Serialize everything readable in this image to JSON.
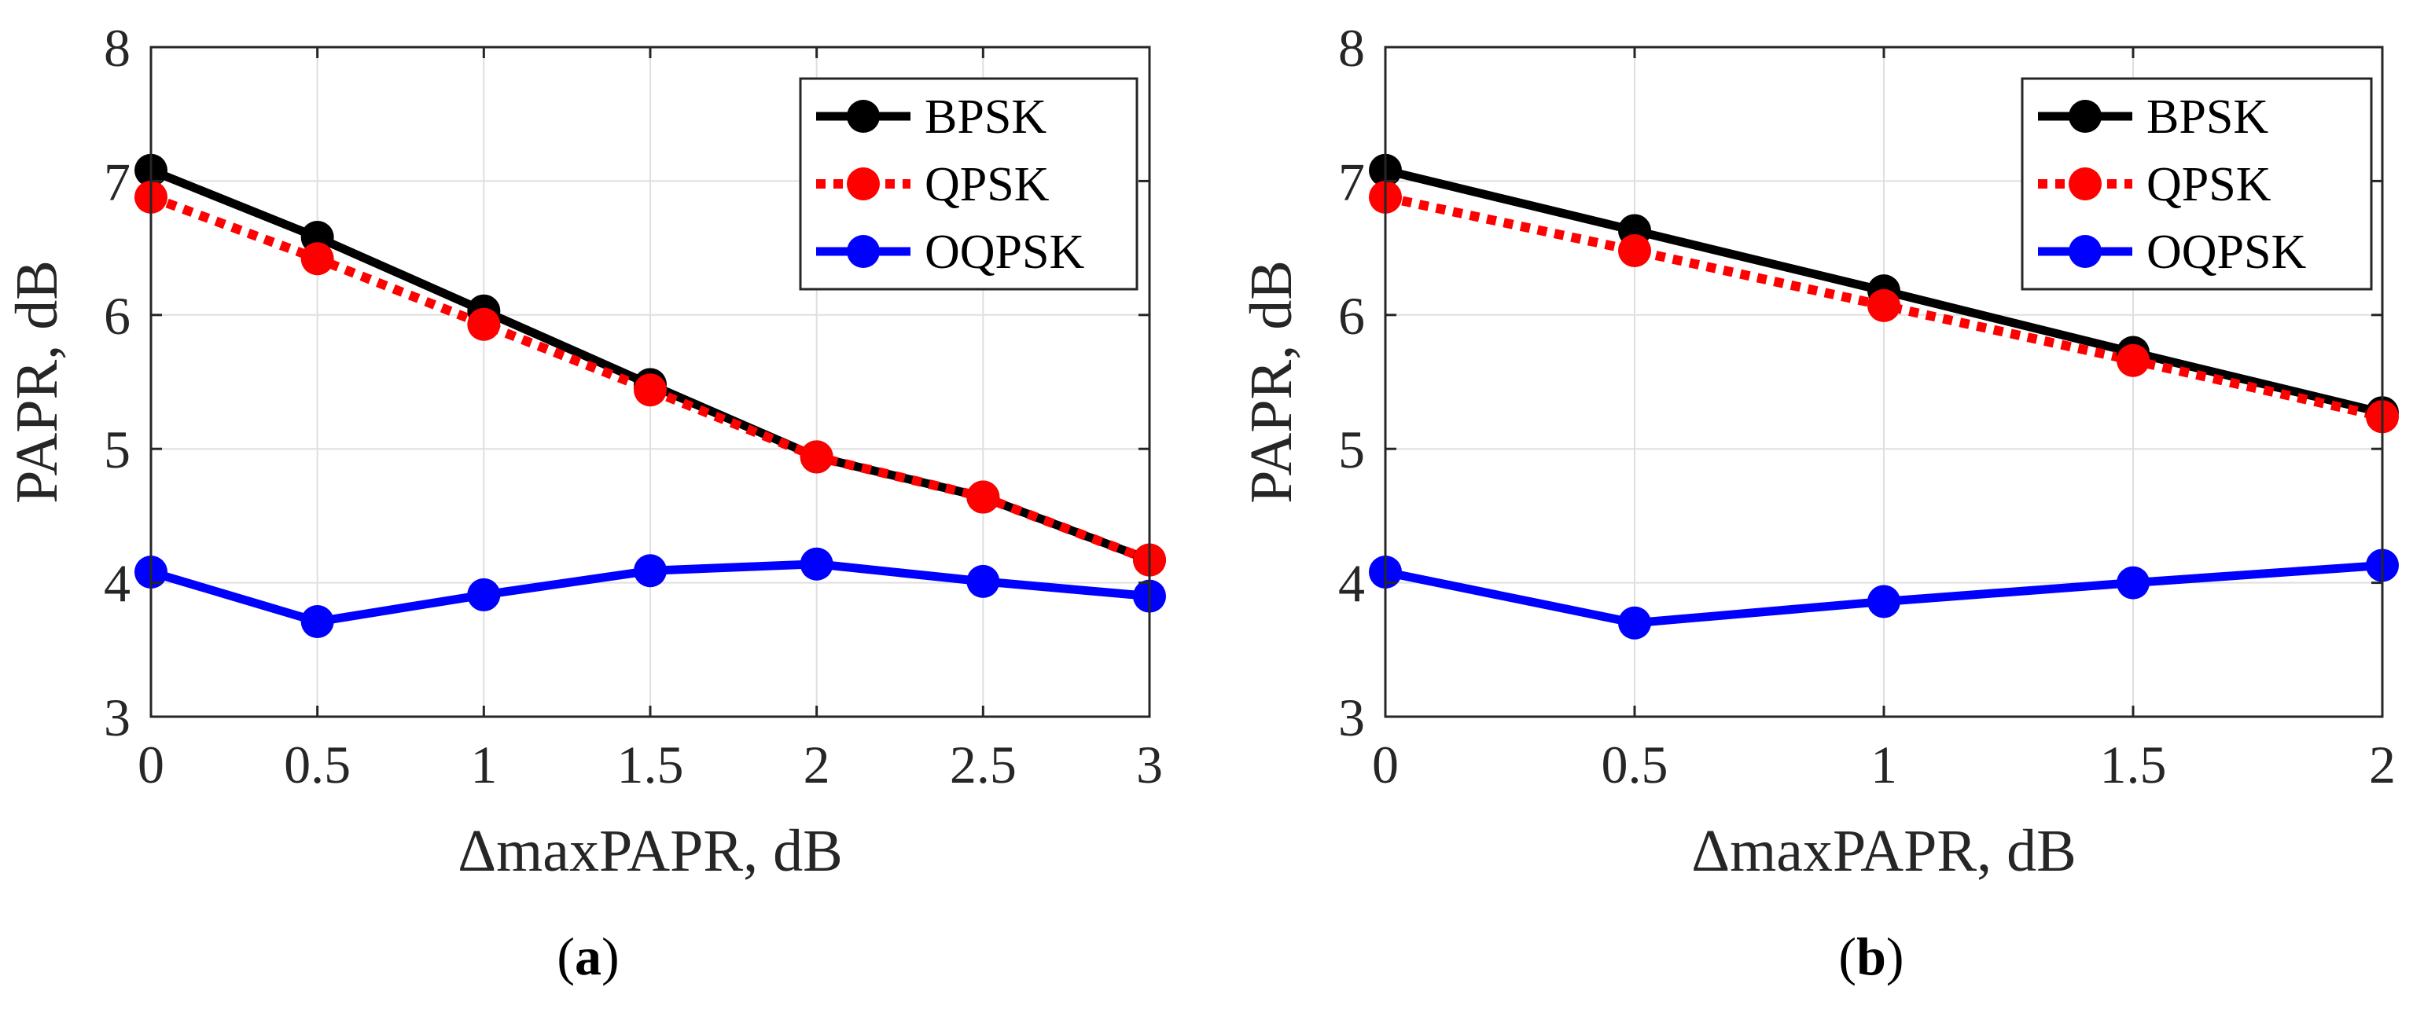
{
  "chart_data": [
    {
      "type": "line",
      "panel": "a",
      "caption": {
        "open": "(",
        "letter": "a",
        "close": ")"
      },
      "x": [
        0,
        0.5,
        1,
        1.5,
        2,
        2.5,
        3
      ],
      "xticks": [
        "0",
        "0.5",
        "1",
        "1.5",
        "2",
        "2.5",
        "3"
      ],
      "xlim": [
        0,
        3
      ],
      "yticks": [
        "3",
        "4",
        "5",
        "6",
        "7",
        "8"
      ],
      "ylim": [
        3,
        8
      ],
      "xlabel": "ΔmaxPAPR, dB",
      "ylabel": "PAPR, dB",
      "grid": true,
      "legend_position": "top-right",
      "series": [
        {
          "name": "BPSK",
          "color": "#000000",
          "dash": "solid",
          "values": [
            7.08,
            6.58,
            6.03,
            5.48,
            4.94,
            4.64,
            4.17
          ]
        },
        {
          "name": "QPSK",
          "color": "#ff0000",
          "dash": "dotted",
          "values": [
            6.88,
            6.42,
            5.93,
            5.44,
            4.94,
            4.64,
            4.17
          ]
        },
        {
          "name": "OQPSK",
          "color": "#0000ff",
          "dash": "solid",
          "values": [
            4.08,
            3.71,
            3.91,
            4.09,
            4.14,
            4.01,
            3.9
          ]
        }
      ]
    },
    {
      "type": "line",
      "panel": "b",
      "caption": {
        "open": "(",
        "letter": "b",
        "close": ")"
      },
      "x": [
        0,
        0.5,
        1,
        1.5,
        2
      ],
      "xticks": [
        "0",
        "0.5",
        "1",
        "1.5",
        "2"
      ],
      "xlim": [
        0,
        2
      ],
      "yticks": [
        "3",
        "4",
        "5",
        "6",
        "7",
        "8"
      ],
      "ylim": [
        3,
        8
      ],
      "xlabel": "ΔmaxPAPR, dB",
      "ylabel": "PAPR, dB",
      "grid": true,
      "legend_position": "top-right",
      "series": [
        {
          "name": "BPSK",
          "color": "#000000",
          "dash": "solid",
          "values": [
            7.08,
            6.63,
            6.18,
            5.72,
            5.27
          ]
        },
        {
          "name": "QPSK",
          "color": "#ff0000",
          "dash": "dotted",
          "values": [
            6.88,
            6.48,
            6.07,
            5.66,
            5.24
          ]
        },
        {
          "name": "OQPSK",
          "color": "#0000ff",
          "dash": "solid",
          "values": [
            4.08,
            3.7,
            3.86,
            4.0,
            4.13
          ]
        }
      ]
    }
  ]
}
